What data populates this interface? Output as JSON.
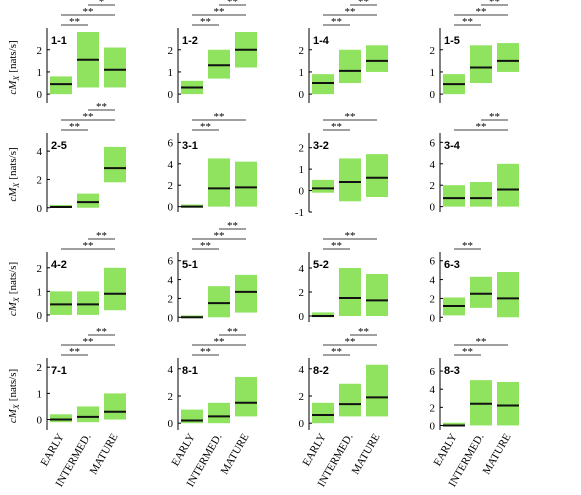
{
  "chart_data": {
    "type": "box",
    "categories": [
      "EARLY",
      "INTERMED.",
      "MATURE"
    ],
    "y_label": "cM",
    "y_label_sub": "X",
    "y_label_unit": "[nats/s]",
    "box_color": "#8fe35f",
    "median_color": "#111111",
    "panels": [
      {
        "label": "1-1",
        "ylim": [
          -0.4,
          2.8
        ],
        "yticks": [
          0,
          1,
          2
        ],
        "lows": [
          0,
          0.3,
          0.3
        ],
        "highs": [
          0.8,
          2.8,
          2.1
        ],
        "medians": [
          0.45,
          1.55,
          1.1
        ],
        "brackets": [
          {
            "pair": [
              0,
              1
            ],
            "text": "**"
          },
          {
            "pair": [
              0,
              2
            ],
            "text": "**"
          },
          {
            "pair": [
              1,
              2
            ],
            "text": "*"
          }
        ]
      },
      {
        "label": "1-2",
        "ylim": [
          -0.4,
          2.8
        ],
        "yticks": [
          0,
          1,
          2
        ],
        "lows": [
          0,
          0.7,
          1.2
        ],
        "highs": [
          0.6,
          2,
          2.8
        ],
        "medians": [
          0.3,
          1.3,
          2.0
        ],
        "brackets": [
          {
            "pair": [
              0,
              1
            ],
            "text": "**"
          },
          {
            "pair": [
              0,
              2
            ],
            "text": "**"
          },
          {
            "pair": [
              1,
              2
            ],
            "text": "**"
          }
        ]
      },
      {
        "label": "1-4",
        "ylim": [
          -0.4,
          2.8
        ],
        "yticks": [
          0,
          1,
          2
        ],
        "lows": [
          0,
          0.5,
          1
        ],
        "highs": [
          0.9,
          2,
          2.2
        ],
        "medians": [
          0.5,
          1.05,
          1.5
        ],
        "brackets": [
          {
            "pair": [
              0,
              1
            ],
            "text": "**"
          },
          {
            "pair": [
              0,
              2
            ],
            "text": "**"
          },
          {
            "pair": [
              1,
              2
            ],
            "text": "**"
          }
        ]
      },
      {
        "label": "1-5",
        "ylim": [
          -0.4,
          2.8
        ],
        "yticks": [
          0,
          1,
          2
        ],
        "lows": [
          0,
          0.5,
          1
        ],
        "highs": [
          0.9,
          2.2,
          2.3
        ],
        "medians": [
          0.45,
          1.2,
          1.5
        ],
        "brackets": [
          {
            "pair": [
              0,
              1
            ],
            "text": "**"
          },
          {
            "pair": [
              0,
              2
            ],
            "text": "**"
          },
          {
            "pair": [
              1,
              2
            ],
            "text": "**"
          }
        ]
      },
      {
        "label": "2-5",
        "ylim": [
          -0.3,
          5
        ],
        "yticks": [
          0,
          2,
          4
        ],
        "lows": [
          0,
          0,
          1.8
        ],
        "highs": [
          0.2,
          1,
          4.3
        ],
        "medians": [
          0.05,
          0.4,
          2.8
        ],
        "brackets": [
          {
            "pair": [
              0,
              1
            ],
            "text": "**"
          },
          {
            "pair": [
              0,
              2
            ],
            "text": "**"
          },
          {
            "pair": [
              1,
              2
            ],
            "text": "**"
          }
        ]
      },
      {
        "label": "3-1",
        "ylim": [
          -0.5,
          6.5
        ],
        "yticks": [
          0,
          2,
          4,
          6
        ],
        "lows": [
          -0.1,
          0,
          0
        ],
        "highs": [
          0.2,
          4.5,
          4.2
        ],
        "medians": [
          0,
          1.7,
          1.8
        ],
        "brackets": [
          {
            "pair": [
              0,
              1
            ],
            "text": "**"
          },
          {
            "pair": [
              0,
              2
            ],
            "text": "**"
          }
        ]
      },
      {
        "label": "3-2",
        "ylim": [
          -1,
          2.5
        ],
        "yticks": [
          -1,
          0,
          1,
          2
        ],
        "lows": [
          -0.1,
          -0.5,
          -0.3
        ],
        "highs": [
          0.5,
          1.5,
          1.7
        ],
        "medians": [
          0.1,
          0.4,
          0.6
        ],
        "brackets": [
          {
            "pair": [
              0,
              1
            ],
            "text": "**"
          },
          {
            "pair": [
              0,
              2
            ],
            "text": "**"
          }
        ]
      },
      {
        "label": "3-4",
        "ylim": [
          -0.5,
          6.5
        ],
        "yticks": [
          0,
          2,
          4,
          6
        ],
        "lows": [
          0,
          0,
          0
        ],
        "highs": [
          2,
          2.3,
          4
        ],
        "medians": [
          0.8,
          0.8,
          1.6
        ],
        "brackets": [
          {
            "pair": [
              0,
              2
            ],
            "text": "**"
          },
          {
            "pair": [
              1,
              2
            ],
            "text": "**"
          }
        ]
      },
      {
        "label": "4-2",
        "ylim": [
          -0.3,
          2.5
        ],
        "yticks": [
          0,
          1,
          2
        ],
        "lows": [
          0,
          0,
          0.2
        ],
        "highs": [
          1,
          1,
          2
        ],
        "medians": [
          0.45,
          0.45,
          0.9
        ],
        "brackets": [
          {
            "pair": [
              0,
              2
            ],
            "text": "**"
          },
          {
            "pair": [
              1,
              2
            ],
            "text": "**"
          }
        ]
      },
      {
        "label": "5-1",
        "ylim": [
          -0.5,
          6.5
        ],
        "yticks": [
          0,
          2,
          4,
          6
        ],
        "lows": [
          -0.1,
          0,
          0.5
        ],
        "highs": [
          0.2,
          3.3,
          4.5
        ],
        "medians": [
          0,
          1.5,
          2.7
        ],
        "brackets": [
          {
            "pair": [
              0,
              1
            ],
            "text": "**"
          },
          {
            "pair": [
              0,
              2
            ],
            "text": "**"
          },
          {
            "pair": [
              1,
              2
            ],
            "text": "**"
          }
        ]
      },
      {
        "label": "5-2",
        "ylim": [
          -0.5,
          5
        ],
        "yticks": [
          0,
          2,
          4
        ],
        "lows": [
          -0.1,
          0,
          0
        ],
        "highs": [
          0.3,
          4,
          3.5
        ],
        "medians": [
          0,
          1.5,
          1.3
        ],
        "brackets": [
          {
            "pair": [
              0,
              1
            ],
            "text": "**"
          },
          {
            "pair": [
              0,
              2
            ],
            "text": "**"
          }
        ]
      },
      {
        "label": "6-3",
        "ylim": [
          -0.5,
          6.5
        ],
        "yticks": [
          0,
          2,
          4,
          6
        ],
        "lows": [
          0.2,
          1,
          0
        ],
        "highs": [
          2.1,
          4.3,
          4.8
        ],
        "medians": [
          1.2,
          2.5,
          2.0
        ],
        "brackets": [
          {
            "pair": [
              0,
              1
            ],
            "text": "**"
          }
        ]
      },
      {
        "label": "7-1",
        "ylim": [
          -0.4,
          2.2
        ],
        "yticks": [
          0,
          1,
          2
        ],
        "lows": [
          -0.1,
          -0.1,
          0
        ],
        "highs": [
          0.2,
          0.5,
          1
        ],
        "medians": [
          0,
          0.1,
          0.3
        ],
        "brackets": [
          {
            "pair": [
              0,
              1
            ],
            "text": "**"
          },
          {
            "pair": [
              0,
              2
            ],
            "text": "**"
          },
          {
            "pair": [
              1,
              2
            ],
            "text": "**"
          }
        ]
      },
      {
        "label": "8-1",
        "ylim": [
          -0.5,
          4.5
        ],
        "yticks": [
          0,
          2,
          4
        ],
        "lows": [
          0,
          0,
          0.5
        ],
        "highs": [
          1,
          1.5,
          3.4
        ],
        "medians": [
          0.2,
          0.5,
          1.5
        ],
        "brackets": [
          {
            "pair": [
              0,
              1
            ],
            "text": "**"
          },
          {
            "pair": [
              0,
              2
            ],
            "text": "**"
          },
          {
            "pair": [
              1,
              2
            ],
            "text": "**"
          }
        ]
      },
      {
        "label": "8-2",
        "ylim": [
          -0.5,
          4.5
        ],
        "yticks": [
          0,
          2,
          4
        ],
        "lows": [
          0,
          0.5,
          0.5
        ],
        "highs": [
          1.5,
          2.9,
          4.3
        ],
        "medians": [
          0.6,
          1.4,
          1.9
        ],
        "brackets": [
          {
            "pair": [
              0,
              1
            ],
            "text": "**"
          },
          {
            "pair": [
              0,
              2
            ],
            "text": "**"
          },
          {
            "pair": [
              1,
              2
            ],
            "text": "**"
          }
        ]
      },
      {
        "label": "8-3",
        "ylim": [
          -0.5,
          7
        ],
        "yticks": [
          0,
          2,
          4,
          6
        ],
        "lows": [
          -0.1,
          0,
          0
        ],
        "highs": [
          0.3,
          5,
          4.8
        ],
        "medians": [
          0,
          2.4,
          2.2
        ],
        "brackets": [
          {
            "pair": [
              0,
              1
            ],
            "text": "**"
          },
          {
            "pair": [
              0,
              2
            ],
            "text": "**"
          }
        ]
      }
    ]
  }
}
